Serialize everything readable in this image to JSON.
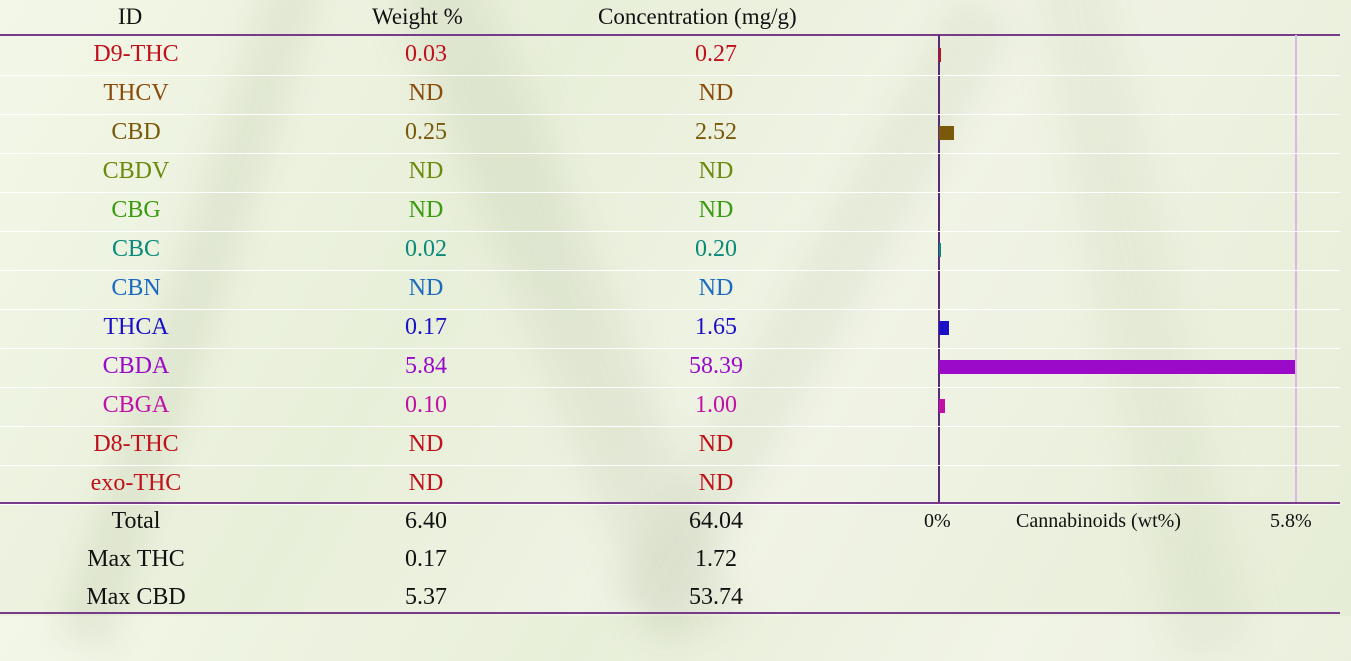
{
  "header": {
    "id": "ID",
    "weight": "Weight %",
    "concentration": "Concentration (mg/g)"
  },
  "rows": [
    {
      "id": "D9-THC",
      "weight": "0.03",
      "conc": "0.27",
      "color": "#c0111b",
      "wt": 0.03
    },
    {
      "id": "THCV",
      "weight": "ND",
      "conc": "ND",
      "color": "#8a4a0a",
      "wt": 0
    },
    {
      "id": "CBD",
      "weight": "0.25",
      "conc": "2.52",
      "color": "#7a5a0a",
      "wt": 0.25
    },
    {
      "id": "CBDV",
      "weight": "ND",
      "conc": "ND",
      "color": "#6a8a0a",
      "wt": 0
    },
    {
      "id": "CBG",
      "weight": "ND",
      "conc": "ND",
      "color": "#3a9a10",
      "wt": 0
    },
    {
      "id": "CBC",
      "weight": "0.02",
      "conc": "0.20",
      "color": "#0a8a7a",
      "wt": 0.02
    },
    {
      "id": "CBN",
      "weight": "ND",
      "conc": "ND",
      "color": "#1a6ac0",
      "wt": 0
    },
    {
      "id": "THCA",
      "weight": "0.17",
      "conc": "1.65",
      "color": "#1a10c8",
      "wt": 0.17
    },
    {
      "id": "CBDA",
      "weight": "5.84",
      "conc": "58.39",
      "color": "#9a0ac8",
      "wt": 5.84
    },
    {
      "id": "CBGA",
      "weight": "0.10",
      "conc": "1.00",
      "color": "#c010a8",
      "wt": 0.1
    },
    {
      "id": "D8-THC",
      "weight": "ND",
      "conc": "ND",
      "color": "#c0111b",
      "wt": 0
    },
    {
      "id": "exo-THC",
      "weight": "ND",
      "conc": "ND",
      "color": "#c0111b",
      "wt": 0
    }
  ],
  "summary": [
    {
      "label": "Total",
      "weight": "6.40",
      "conc": "64.04"
    },
    {
      "label": "Max THC",
      "weight": "0.17",
      "conc": "1.72"
    },
    {
      "label": "Max CBD",
      "weight": "5.37",
      "conc": "53.74"
    }
  ],
  "chart_data": {
    "type": "bar",
    "orientation": "horizontal",
    "categories": [
      "D9-THC",
      "THCV",
      "CBD",
      "CBDV",
      "CBG",
      "CBC",
      "CBN",
      "THCA",
      "CBDA",
      "CBGA",
      "D8-THC",
      "exo-THC"
    ],
    "values": [
      0.03,
      0,
      0.25,
      0,
      0,
      0.02,
      0,
      0.17,
      5.84,
      0.1,
      0,
      0
    ],
    "xlim": [
      0,
      5.8
    ],
    "xlabel": "Cannabinoids (wt%)",
    "tick_min_label": "0%",
    "tick_max_label": "5.8%"
  }
}
